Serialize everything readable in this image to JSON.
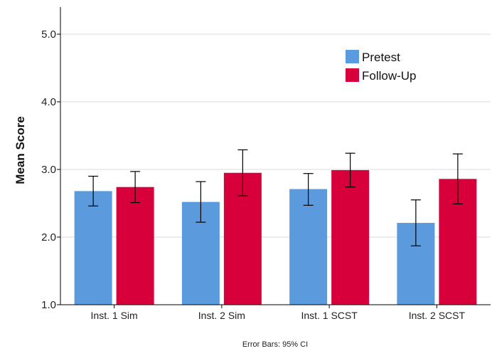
{
  "chart_data": {
    "type": "bar",
    "categories": [
      "Inst. 1 Sim",
      "Inst. 2 Sim",
      "Inst. 1 SCST",
      "Inst. 2 SCST"
    ],
    "series": [
      {
        "name": "Pretest",
        "color": "#5b9bdd",
        "values": [
          2.68,
          2.52,
          2.71,
          2.21
        ],
        "ci_low": [
          2.46,
          2.22,
          2.47,
          1.87
        ],
        "ci_high": [
          2.9,
          2.82,
          2.94,
          2.55
        ]
      },
      {
        "name": "Follow-Up",
        "color": "#d7003a",
        "values": [
          2.74,
          2.95,
          2.99,
          2.86
        ],
        "ci_low": [
          2.51,
          2.61,
          2.74,
          2.49
        ],
        "ci_high": [
          2.97,
          3.29,
          3.24,
          3.23
        ]
      }
    ],
    "title": "",
    "xlabel": "",
    "ylabel": "Mean Score",
    "ylim": [
      1.0,
      5.4
    ],
    "yticks": [
      "1.0",
      "2.0",
      "3.0",
      "4.0",
      "5.0"
    ],
    "grid": true,
    "legend_position": "top-right",
    "note": "Error Bars: 95% CI"
  }
}
